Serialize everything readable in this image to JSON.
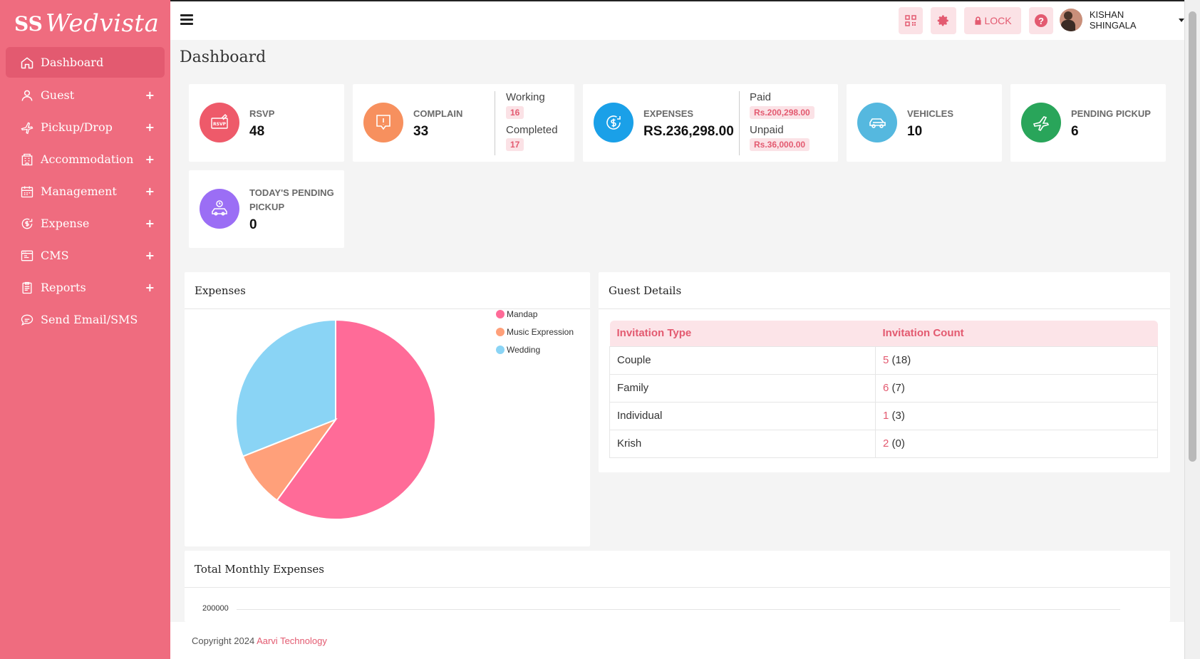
{
  "brand": {
    "mark": "SS",
    "name": "Wedvista"
  },
  "sidebar": {
    "items": [
      {
        "label": "Dashboard",
        "icon": "home-icon",
        "active": true,
        "expandable": false
      },
      {
        "label": "Guest",
        "icon": "user-icon",
        "expandable": true
      },
      {
        "label": "Pickup/Drop",
        "icon": "plane-icon",
        "expandable": true
      },
      {
        "label": "Accommodation",
        "icon": "hotel-icon",
        "expandable": true
      },
      {
        "label": "Management",
        "icon": "calendar-icon",
        "expandable": true
      },
      {
        "label": "Expense",
        "icon": "dollar-icon",
        "expandable": true
      },
      {
        "label": "CMS",
        "icon": "browser-icon",
        "expandable": true
      },
      {
        "label": "Reports",
        "icon": "clipboard-icon",
        "expandable": true
      },
      {
        "label": "Send Email/SMS",
        "icon": "chat-icon",
        "expandable": false
      }
    ],
    "plus": "+"
  },
  "header": {
    "lock_label": "LOCK",
    "help_label": "?",
    "user_name": "KISHAN SHINGALA"
  },
  "page": {
    "title": "Dashboard"
  },
  "stats": {
    "rsvp": {
      "label": "RSVP",
      "value": "48",
      "icon_text": "RSVP"
    },
    "complain": {
      "label": "COMPLAIN",
      "value": "33",
      "working_label": "Working",
      "working_value": "16",
      "completed_label": "Completed",
      "completed_value": "17"
    },
    "expenses": {
      "label": "EXPENSES",
      "value": "RS.236,298.00",
      "paid_label": "Paid",
      "paid_value": "Rs.200,298.00",
      "unpaid_label": "Unpaid",
      "unpaid_value": "Rs.36,000.00"
    },
    "vehicles": {
      "label": "VEHICLES",
      "value": "10"
    },
    "pending_pickup": {
      "label": "PENDING PICKUP",
      "value": "6"
    },
    "todays_pending_pickup": {
      "label_line1": "TODAY'S PENDING",
      "label_line2": "PICKUP",
      "value": "0"
    }
  },
  "colors": {
    "sidebar": "#ef6c7f",
    "accent": "#e35a70",
    "rsvp": "#ee5a6a",
    "complain": "#f7905e",
    "expenses": "#1aa0e8",
    "vehicles": "#55b8df",
    "pending": "#29a55a",
    "today": "#9b6ef5"
  },
  "expenses_panel": {
    "title": "Expenses"
  },
  "chart_data": {
    "type": "pie",
    "title": "",
    "categories": [
      "Mandap",
      "Music Expression",
      "Wedding"
    ],
    "values": [
      60,
      9,
      31
    ],
    "colors": [
      "#ff6b98",
      "#ffa07a",
      "#8ad4f5"
    ],
    "legend": "top-right"
  },
  "guest_panel": {
    "title": "Guest Details",
    "headers": [
      "Invitation Type",
      "Invitation Count"
    ],
    "rows": [
      {
        "type": "Couple",
        "count": "5",
        "members": "(18)"
      },
      {
        "type": "Family",
        "count": "6",
        "members": "(7)"
      },
      {
        "type": "Individual",
        "count": "1",
        "members": "(3)"
      },
      {
        "type": "Krish",
        "count": "2",
        "members": "(0)"
      }
    ]
  },
  "monthly_panel": {
    "title": "Total Monthly Expenses",
    "y_tick": "200000"
  },
  "footer": {
    "prefix": "Copyright 2024 ",
    "company": "Aarvi Technology"
  }
}
